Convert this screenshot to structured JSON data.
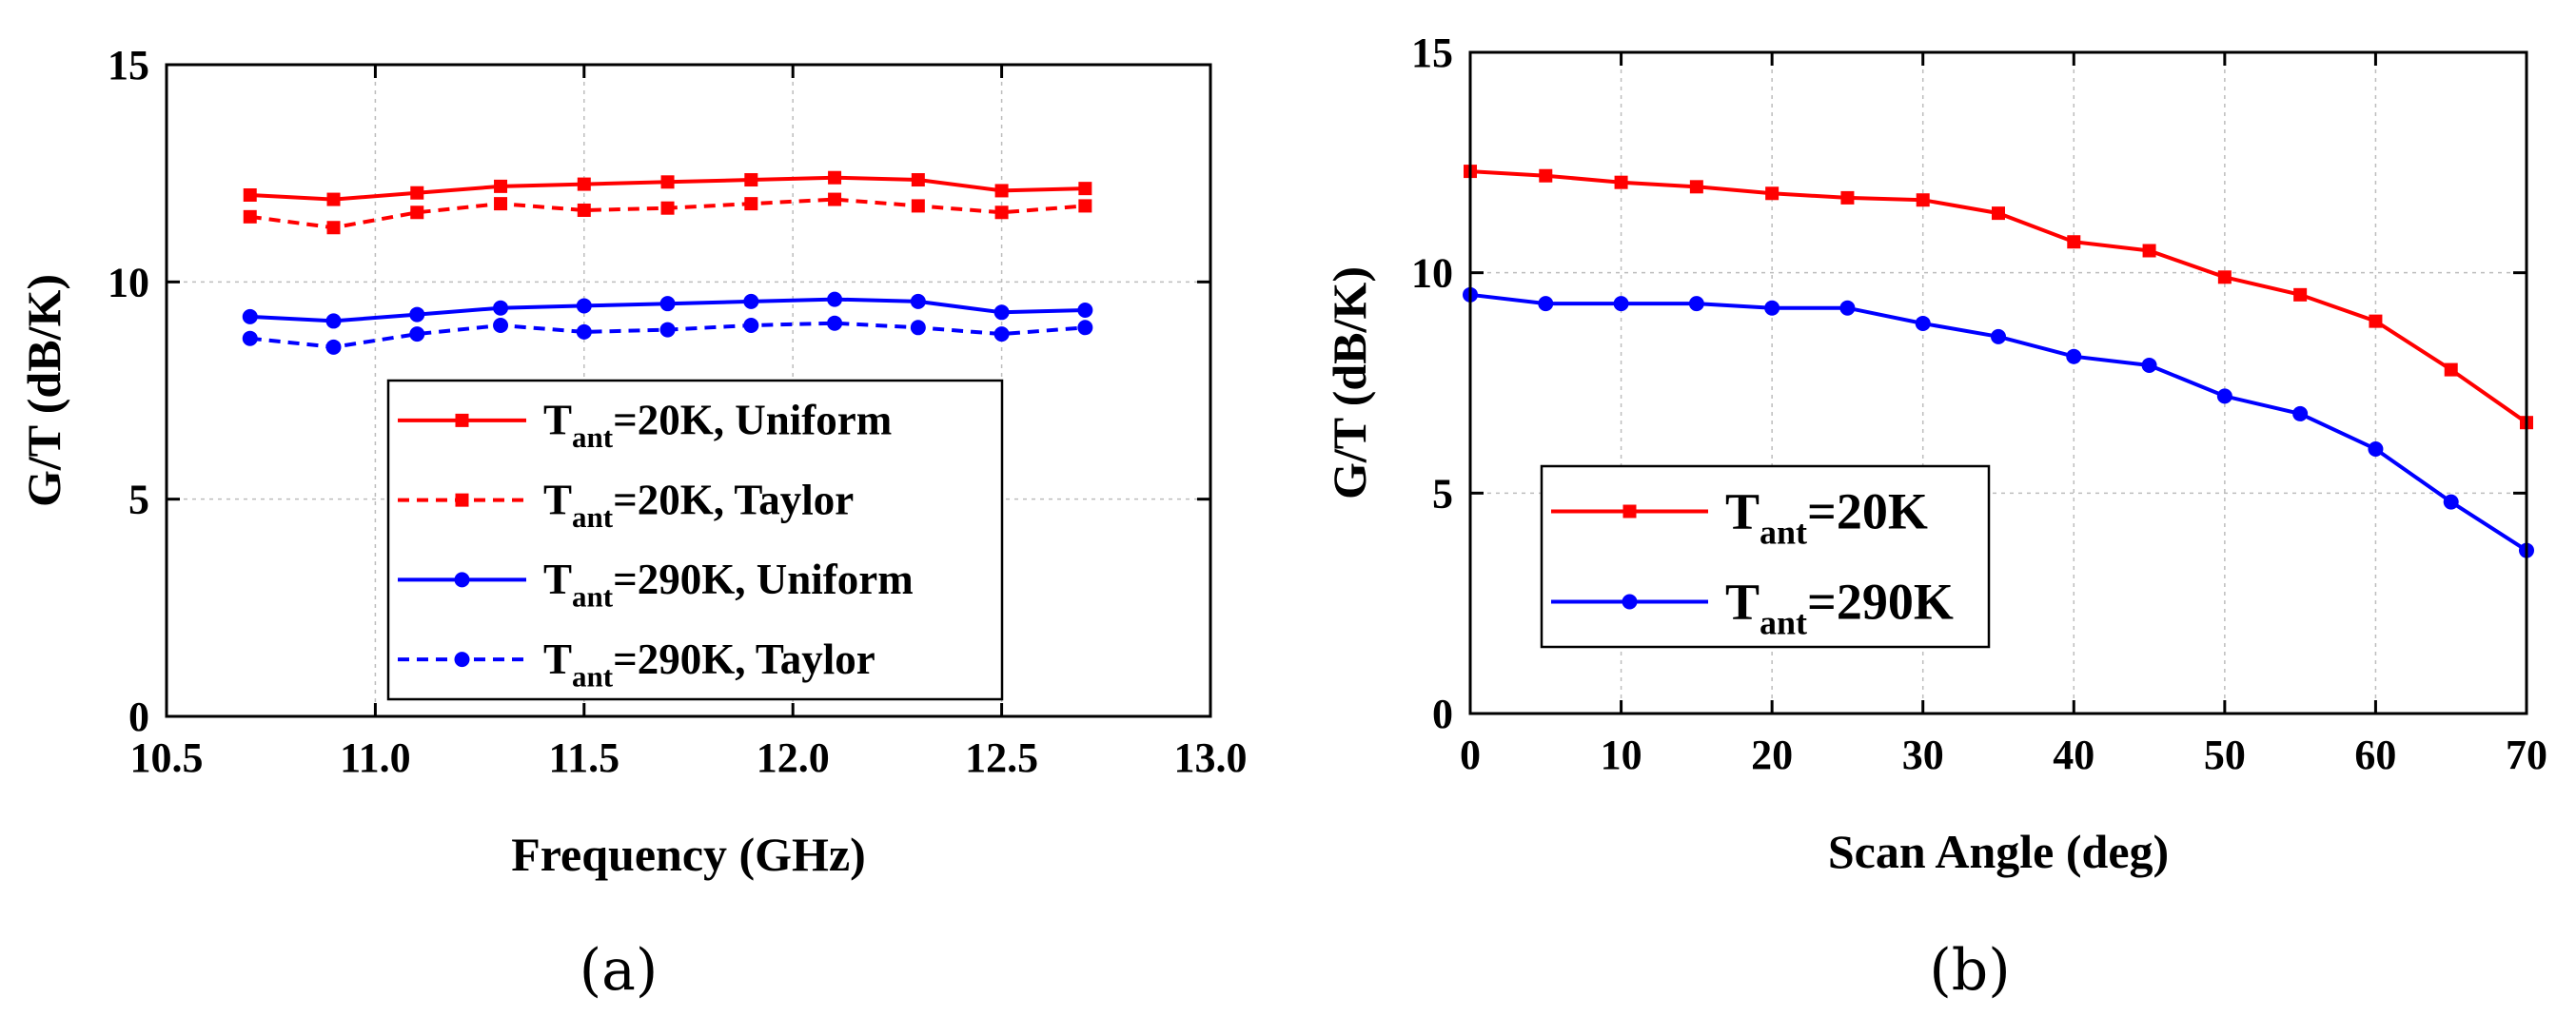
{
  "chart_data": [
    {
      "type": "line",
      "caption": "(a)",
      "xlabel": "Frequency (GHz)",
      "ylabel": "G/T (dB/K)",
      "xlim": [
        10.5,
        13.0
      ],
      "ylim": [
        0,
        15
      ],
      "xticks": [
        "10.5",
        "11.0",
        "11.5",
        "12.0",
        "12.5",
        "13.0"
      ],
      "yticks": [
        "0",
        "5",
        "10",
        "15"
      ],
      "grid": true,
      "legend_position": "lower-center",
      "x": [
        10.7,
        10.9,
        11.1,
        11.3,
        11.5,
        11.7,
        11.9,
        12.1,
        12.3,
        12.5,
        12.7
      ],
      "series": [
        {
          "name": "T_ant=20K, Uniform",
          "legend_main": "T",
          "legend_sub": "ant",
          "legend_rest": "=20K, Uniform",
          "color": "#ff0000",
          "dash": "solid",
          "marker": "square",
          "values": [
            12.0,
            11.9,
            12.05,
            12.2,
            12.25,
            12.3,
            12.35,
            12.4,
            12.35,
            12.1,
            12.15
          ]
        },
        {
          "name": "T_ant=20K, Taylor",
          "legend_main": "T",
          "legend_sub": "ant",
          "legend_rest": "=20K, Taylor",
          "color": "#ff0000",
          "dash": "dashed",
          "marker": "square",
          "values": [
            11.5,
            11.25,
            11.6,
            11.8,
            11.65,
            11.7,
            11.8,
            11.9,
            11.75,
            11.6,
            11.75
          ]
        },
        {
          "name": "T_ant=290K, Uniform",
          "legend_main": "T",
          "legend_sub": "ant",
          "legend_rest": "=290K, Uniform",
          "color": "#0000ff",
          "dash": "solid",
          "marker": "circle",
          "values": [
            9.2,
            9.1,
            9.25,
            9.4,
            9.45,
            9.5,
            9.55,
            9.6,
            9.55,
            9.3,
            9.35
          ]
        },
        {
          "name": "T_ant=290K, Taylor",
          "legend_main": "T",
          "legend_sub": "ant",
          "legend_rest": "=290K, Taylor",
          "color": "#0000ff",
          "dash": "dashed",
          "marker": "circle",
          "values": [
            8.7,
            8.5,
            8.8,
            9.0,
            8.85,
            8.9,
            9.0,
            9.05,
            8.95,
            8.8,
            8.95
          ]
        }
      ]
    },
    {
      "type": "line",
      "caption": "(b)",
      "xlabel": "Scan Angle (deg)",
      "ylabel": "G/T (dB/K)",
      "xlim": [
        0,
        70
      ],
      "ylim": [
        0,
        15
      ],
      "xticks": [
        "0",
        "10",
        "20",
        "30",
        "40",
        "50",
        "60",
        "70"
      ],
      "yticks": [
        "0",
        "5",
        "10",
        "15"
      ],
      "grid": true,
      "legend_position": "lower-left",
      "x": [
        0,
        5,
        10,
        15,
        20,
        25,
        30,
        35,
        40,
        45,
        50,
        55,
        60,
        65,
        70
      ],
      "series": [
        {
          "name": "T_ant=20K",
          "legend_main": "T",
          "legend_sub": "ant",
          "legend_rest": "=20K",
          "color": "#ff0000",
          "dash": "solid",
          "marker": "square",
          "values": [
            12.3,
            12.2,
            12.05,
            11.95,
            11.8,
            11.7,
            11.65,
            11.35,
            10.7,
            10.5,
            9.9,
            9.5,
            8.9,
            7.8,
            6.6
          ]
        },
        {
          "name": "T_ant=290K",
          "legend_main": "T",
          "legend_sub": "ant",
          "legend_rest": "=290K",
          "color": "#0000ff",
          "dash": "solid",
          "marker": "circle",
          "values": [
            9.5,
            9.3,
            9.3,
            9.3,
            9.2,
            9.2,
            8.85,
            8.55,
            8.1,
            7.9,
            7.2,
            6.8,
            6.0,
            4.8,
            3.7
          ]
        }
      ]
    }
  ]
}
